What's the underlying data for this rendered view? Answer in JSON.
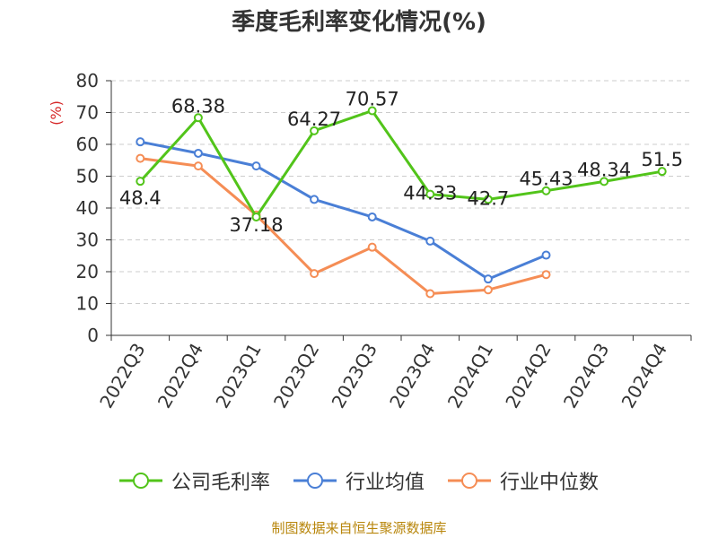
{
  "chart_data": {
    "type": "line",
    "title": "季度毛利率变化情况(%)",
    "ylabel": "(%)",
    "xlabel": "",
    "ylim": [
      0,
      80
    ],
    "yticks": [
      0,
      10,
      20,
      30,
      40,
      50,
      60,
      70,
      80
    ],
    "categories": [
      "2022Q3",
      "2022Q4",
      "2023Q1",
      "2023Q2",
      "2023Q3",
      "2023Q4",
      "2024Q1",
      "2024Q2",
      "2024Q3",
      "2024Q4"
    ],
    "series": [
      {
        "name": "公司毛利率",
        "color": "#52c41a",
        "labeled": true,
        "values": [
          48.4,
          68.38,
          37.18,
          64.27,
          70.57,
          44.33,
          42.7,
          45.43,
          48.34,
          51.5
        ]
      },
      {
        "name": "行业均值",
        "color": "#4a7fd6",
        "labeled": false,
        "values": [
          60.8,
          57.2,
          53.2,
          42.7,
          37.2,
          29.6,
          17.7,
          25.2,
          null,
          null
        ]
      },
      {
        "name": "行业中位数",
        "color": "#f58d55",
        "labeled": false,
        "values": [
          55.6,
          53.2,
          37.8,
          19.4,
          27.7,
          13.1,
          14.3,
          19.1,
          null,
          null
        ]
      }
    ],
    "grid": true,
    "legend_position": "bottom"
  },
  "source_text": "制图数据来自恒生聚源数据库"
}
